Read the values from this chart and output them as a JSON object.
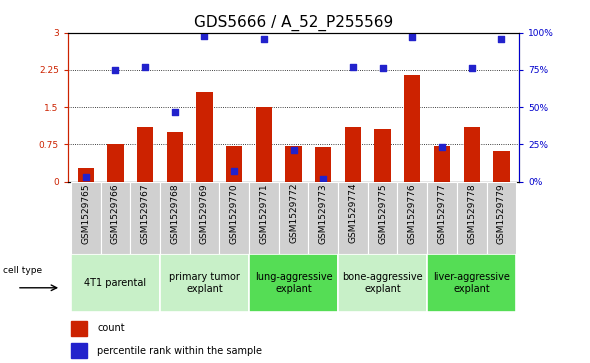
{
  "title": "GDS5666 / A_52_P255569",
  "samples": [
    "GSM1529765",
    "GSM1529766",
    "GSM1529767",
    "GSM1529768",
    "GSM1529769",
    "GSM1529770",
    "GSM1529771",
    "GSM1529772",
    "GSM1529773",
    "GSM1529774",
    "GSM1529775",
    "GSM1529776",
    "GSM1529777",
    "GSM1529778",
    "GSM1529779"
  ],
  "counts": [
    0.27,
    0.75,
    1.1,
    1.0,
    1.8,
    0.72,
    1.5,
    0.72,
    0.7,
    1.1,
    1.05,
    2.15,
    0.72,
    1.1,
    0.62
  ],
  "percentiles": [
    3.0,
    75.0,
    77.0,
    47.0,
    98.0,
    7.0,
    96.0,
    21.0,
    2.0,
    77.0,
    76.0,
    97.0,
    23.0,
    76.0,
    96.0
  ],
  "cell_types": [
    {
      "label": "4T1 parental",
      "start": 0,
      "end": 2,
      "color": "#c8f0c8"
    },
    {
      "label": "primary tumor\nexplant",
      "start": 3,
      "end": 5,
      "color": "#c8f0c8"
    },
    {
      "label": "lung-aggressive\nexplant",
      "start": 6,
      "end": 8,
      "color": "#55dd55"
    },
    {
      "label": "bone-aggressive\nexplant",
      "start": 9,
      "end": 11,
      "color": "#c8f0c8"
    },
    {
      "label": "liver-aggressive\nexplant",
      "start": 12,
      "end": 14,
      "color": "#55dd55"
    }
  ],
  "ylim_left": [
    0,
    3
  ],
  "ylim_right": [
    0,
    100
  ],
  "yticks_left": [
    0,
    0.75,
    1.5,
    2.25,
    3
  ],
  "ytick_labels_left": [
    "0",
    "0.75",
    "1.5",
    "2.25",
    "3"
  ],
  "yticks_right": [
    0,
    25,
    50,
    75,
    100
  ],
  "ytick_labels_right": [
    "0%",
    "25%",
    "50%",
    "75%",
    "100%"
  ],
  "bar_color": "#cc2200",
  "dot_color": "#2222cc",
  "bar_width": 0.55,
  "bg_color": "#ffffff",
  "xtick_bg_color": "#d0d0d0",
  "title_fontsize": 11,
  "tick_fontsize": 6.5,
  "cell_type_fontsize": 7,
  "legend_fontsize": 7
}
